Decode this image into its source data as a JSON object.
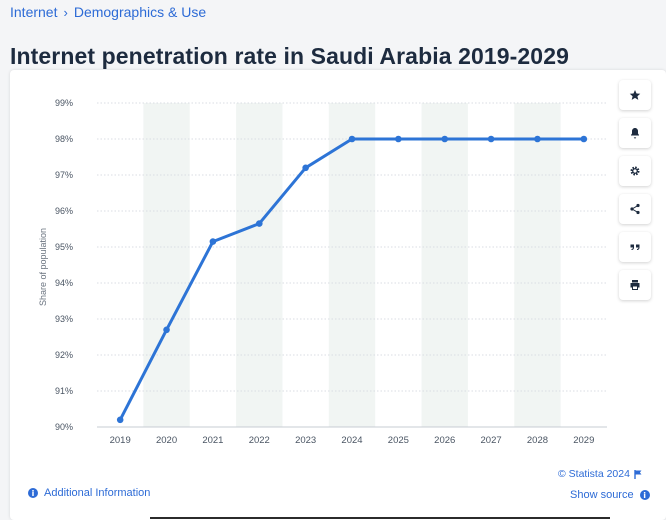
{
  "breadcrumb": {
    "items": [
      "Internet",
      "Demographics & Use"
    ],
    "separator": "›"
  },
  "page_title": "Internet penetration rate in Saudi Arabia 2019-2029",
  "toolbar": {
    "icons": [
      "star-icon",
      "bell-icon",
      "gear-icon",
      "share-icon",
      "quote-icon",
      "print-icon"
    ]
  },
  "footer": {
    "credit": "© Statista 2024",
    "additional_info": "Additional Information",
    "show_source": "Show source"
  },
  "colors": {
    "line": "#2d74d6",
    "band": "#f1f5f3",
    "grid": "#d9dde3",
    "link": "#2d6bd6"
  },
  "chart_data": {
    "type": "line",
    "title": "Internet penetration rate in Saudi Arabia 2019-2029",
    "xlabel": "",
    "ylabel": "Share of population",
    "categories": [
      "2019",
      "2020",
      "2021",
      "2022",
      "2023",
      "2024",
      "2025",
      "2026",
      "2027",
      "2028",
      "2029"
    ],
    "series": [
      {
        "name": "Internet penetration rate",
        "values": [
          90.2,
          92.7,
          95.15,
          95.65,
          97.2,
          98.0,
          98.0,
          98.0,
          98.0,
          98.0,
          98.0
        ]
      }
    ],
    "yticks": [
      "90%",
      "91%",
      "92%",
      "93%",
      "94%",
      "95%",
      "96%",
      "97%",
      "98%",
      "99%"
    ],
    "ylim": [
      90,
      99
    ],
    "grid": true,
    "legend": "none"
  }
}
